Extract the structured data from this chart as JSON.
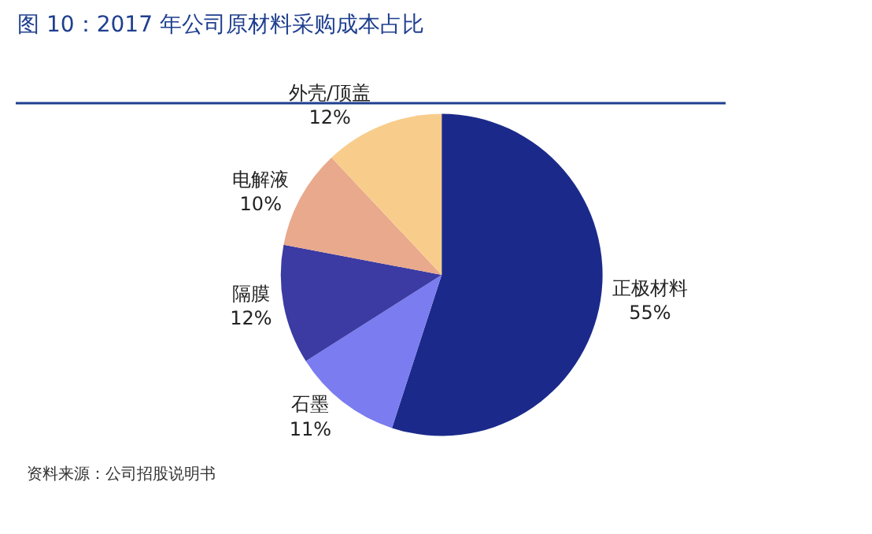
{
  "chart_data": {
    "type": "pie",
    "title": "图 10：2017 年公司原材料采购成本占比",
    "categories": [
      "正极材料",
      "石墨",
      "隔膜",
      "电解液",
      "外壳/顶盖"
    ],
    "values": [
      55,
      11,
      12,
      10,
      12
    ],
    "value_labels": [
      "55%",
      "11%",
      "12%",
      "10%",
      "12%"
    ],
    "colors": [
      "#1b2a8a",
      "#7a7cf0",
      "#3b3ba3",
      "#e9a98c",
      "#f8cd8b"
    ],
    "legend": false,
    "annotations": [
      "资料来源：公司招股说明书"
    ]
  }
}
